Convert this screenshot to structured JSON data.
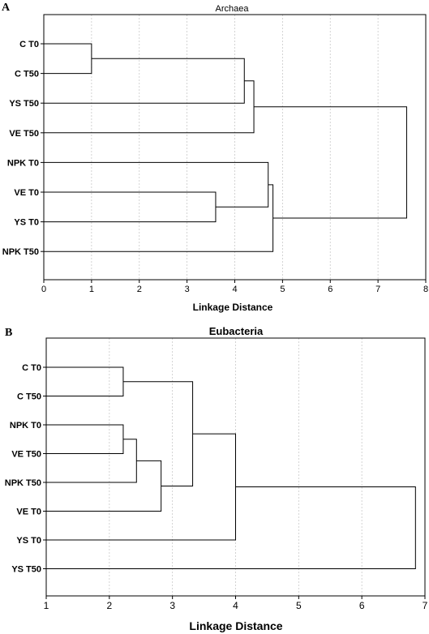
{
  "chart_data": [
    {
      "type": "dendrogram",
      "panel_label": "A",
      "title": "Archaea",
      "xlabel": "Linkage Distance",
      "xlim": [
        0,
        8
      ],
      "xticks": [
        0,
        1,
        2,
        3,
        4,
        5,
        6,
        7,
        8
      ],
      "grid": true,
      "leaves": [
        "C T0",
        "C T50",
        "YS T50",
        "VE T50",
        "NPK T0",
        "VE T0",
        "YS T0",
        "NPK T50"
      ],
      "merges": [
        {
          "left": "C T0",
          "right": "C T50",
          "distance": 1.0
        },
        {
          "left": "VE T0",
          "right": "YS T0",
          "distance": 3.6
        },
        {
          "left": "C T0+C T50",
          "right": "YS T50",
          "distance": 4.2
        },
        {
          "left": "C T0+C T50+YS T50",
          "right": "VE T50",
          "distance": 4.4
        },
        {
          "left": "NPK T0",
          "right": "VE T0+YS T0",
          "distance": 4.7
        },
        {
          "left": "NPK T0+VE T0+YS T0",
          "right": "NPK T50",
          "distance": 4.8
        },
        {
          "left": "C T0+C T50+YS T50+VE T50",
          "right": "NPK T0+VE T0+YS T0+NPK T50",
          "distance": 7.6
        }
      ]
    },
    {
      "type": "dendrogram",
      "panel_label": "B",
      "title": "Eubacteria",
      "xlabel": "Linkage Distance",
      "xlim": [
        1,
        7
      ],
      "xticks": [
        1,
        2,
        3,
        4,
        5,
        6,
        7
      ],
      "grid": true,
      "leaves": [
        "C T0",
        "C T50",
        "NPK T0",
        "VE T50",
        "NPK T50",
        "VE T0",
        "YS T0",
        "YS T50"
      ],
      "merges": [
        {
          "left": "C T0",
          "right": "C T50",
          "distance": 2.22
        },
        {
          "left": "NPK T0",
          "right": "VE T50",
          "distance": 2.22
        },
        {
          "left": "NPK T0+VE T50",
          "right": "NPK T50",
          "distance": 2.43
        },
        {
          "left": "NPK T0+VE T50+NPK T50",
          "right": "VE T0",
          "distance": 2.82
        },
        {
          "left": "C T0+C T50",
          "right": "NPK T0+VE T50+NPK T50+VE T0",
          "distance": 3.32
        },
        {
          "left": "C T0+C T50+NPK T0+VE T50+NPK T50+VE T0",
          "right": "YS T0",
          "distance": 4.0
        },
        {
          "left": "C T0+C T50+NPK T0+VE T50+NPK T50+VE T0+YS T0",
          "right": "YS T50",
          "distance": 6.85
        }
      ]
    }
  ]
}
